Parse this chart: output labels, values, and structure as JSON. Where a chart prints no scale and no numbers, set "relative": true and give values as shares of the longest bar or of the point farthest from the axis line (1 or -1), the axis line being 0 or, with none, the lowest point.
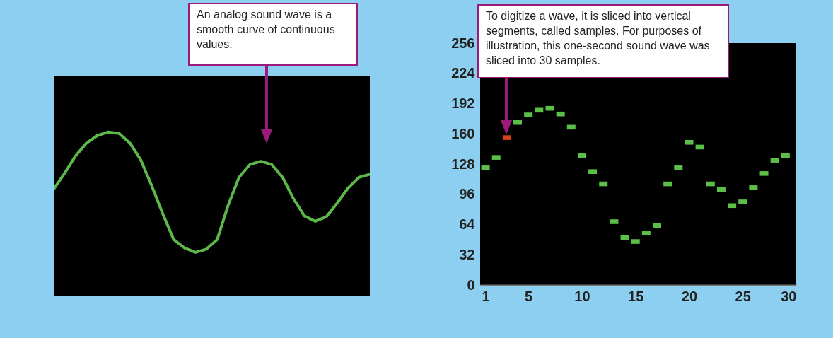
{
  "chart_data": [
    {
      "type": "line",
      "relative": true,
      "categories": [
        null,
        null,
        null,
        null,
        null,
        null,
        null,
        null,
        null,
        null,
        null,
        null,
        null,
        null,
        null,
        null,
        null,
        null,
        null,
        null,
        null,
        null,
        null,
        null,
        null,
        null,
        null,
        null,
        null,
        null
      ],
      "values": [
        0.651,
        0.748,
        0.854,
        0.932,
        0.978,
        1,
        0.991,
        0.932,
        0.827,
        0.67,
        0.5,
        0.343,
        0.291,
        0.264,
        0.284,
        0.343,
        0.552,
        0.723,
        0.801,
        0.821,
        0.801,
        0.723,
        0.592,
        0.487,
        0.454,
        0.481,
        0.565,
        0.657,
        0.723,
        0.742
      ],
      "color": "#5cb848",
      "annotations": [
        "An analog sound wave is a smooth curve of continuous values."
      ]
    },
    {
      "type": "scatter",
      "x": [
        1,
        2,
        3,
        4,
        5,
        6,
        7,
        8,
        9,
        10,
        11,
        12,
        13,
        14,
        15,
        16,
        17,
        18,
        19,
        20,
        21,
        22,
        23,
        24,
        25,
        26,
        27,
        28,
        29
      ],
      "values": [
        124,
        135,
        156,
        172,
        180,
        185,
        187,
        181,
        167,
        137,
        120,
        107,
        67,
        50,
        46,
        55,
        63,
        107,
        124,
        151,
        146,
        107,
        101,
        84,
        88,
        103,
        118,
        132,
        137
      ],
      "colors": [
        "#5cbf47",
        "#5cbf47",
        "#d9401e",
        "#5cbf47",
        "#5cbf47",
        "#5cbf47",
        "#5cbf47",
        "#5cbf47",
        "#5cbf47",
        "#5cbf47",
        "#5cbf47",
        "#5cbf47",
        "#5cbf47",
        "#5cbf47",
        "#5cbf47",
        "#5cbf47",
        "#5cbf47",
        "#5cbf47",
        "#5cbf47",
        "#5cbf47",
        "#5cbf47",
        "#5cbf47",
        "#5cbf47",
        "#5cbf47",
        "#5cbf47",
        "#5cbf47",
        "#5cbf47",
        "#5cbf47",
        "#5cbf47"
      ],
      "xlim": [
        0.5,
        30
      ],
      "xticks": [
        1,
        5,
        10,
        15,
        20,
        25,
        30
      ],
      "ylim": [
        0,
        256
      ],
      "yticks": [
        0,
        32,
        64,
        96,
        128,
        160,
        192,
        224,
        256
      ],
      "annotations": [
        "To digitize a wave, it is sliced into vertical segments, called samples. For purposes of illustration, this one-second sound wave was sliced into 30 samples."
      ]
    }
  ]
}
